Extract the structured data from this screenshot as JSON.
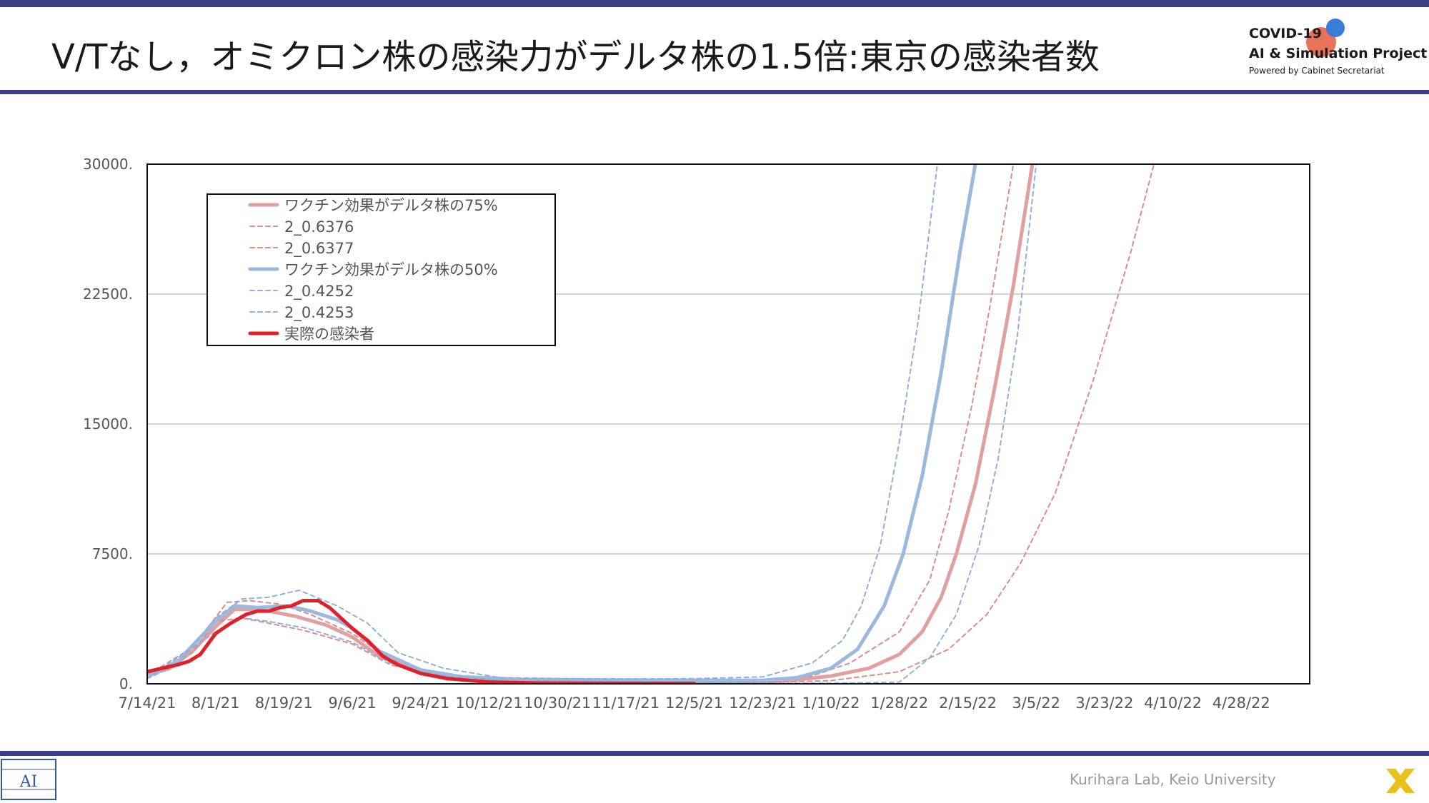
{
  "slide": {
    "title": "V/Tなし，オミクロン株の感染力がデルタ株の1.5倍:東京の感染者数",
    "brand_line1": "COVID-19",
    "brand_line2": "AI & Simulation Project",
    "brand_line3": "Powered by Cabinet Secretariat",
    "footer": "Kurihara Lab, Keio University",
    "logo_left_text": "AI",
    "bar_color": "#3b3f86"
  },
  "chart_data": {
    "type": "line",
    "title": "",
    "xlabel": "",
    "ylabel": "",
    "x_type": "date",
    "xlim": [
      "2021-07-14",
      "2022-05-16"
    ],
    "ylim": [
      0,
      30000
    ],
    "yticks": [
      0,
      7500,
      15000,
      22500,
      30000
    ],
    "ytick_labels": [
      "0.",
      "7500.",
      "15000.",
      "22500.",
      "30000."
    ],
    "xticks": [
      "2021-07-14",
      "2021-08-01",
      "2021-08-19",
      "2021-09-06",
      "2021-09-24",
      "2021-10-12",
      "2021-10-30",
      "2021-11-17",
      "2021-12-05",
      "2021-12-23",
      "2022-01-10",
      "2022-01-28",
      "2022-02-15",
      "2022-03-05",
      "2022-03-23",
      "2022-04-10",
      "2022-04-28"
    ],
    "xtick_labels": [
      "7/14/21",
      "8/1/21",
      "8/19/21",
      "9/6/21",
      "9/24/21",
      "10/12/21",
      "10/30/21",
      "11/17/21",
      "12/5/21",
      "12/23/21",
      "1/10/22",
      "1/28/22",
      "2/15/22",
      "3/5/22",
      "3/23/22",
      "4/10/22",
      "4/28/22"
    ],
    "grid": "horizontal",
    "legend_position": "top-left",
    "series": [
      {
        "name": "ワクチン効果がデルタ株の75%",
        "color": "#e0a0a0",
        "style": "solid-thick",
        "points": [
          [
            "2021-07-14",
            500
          ],
          [
            "2021-07-20",
            900
          ],
          [
            "2021-07-26",
            1900
          ],
          [
            "2021-08-01",
            3300
          ],
          [
            "2021-08-06",
            4300
          ],
          [
            "2021-08-10",
            4300
          ],
          [
            "2021-08-15",
            4200
          ],
          [
            "2021-08-22",
            3900
          ],
          [
            "2021-08-30",
            3400
          ],
          [
            "2021-09-06",
            2700
          ],
          [
            "2021-09-13",
            1600
          ],
          [
            "2021-09-24",
            700
          ],
          [
            "2021-10-05",
            350
          ],
          [
            "2021-10-15",
            220
          ],
          [
            "2021-11-01",
            200
          ],
          [
            "2021-11-17",
            160
          ],
          [
            "2021-12-05",
            120
          ],
          [
            "2021-12-23",
            120
          ],
          [
            "2022-01-01",
            230
          ],
          [
            "2022-01-10",
            450
          ],
          [
            "2022-01-20",
            900
          ],
          [
            "2022-01-28",
            1700
          ],
          [
            "2022-02-03",
            3000
          ],
          [
            "2022-02-08",
            5000
          ],
          [
            "2022-02-12",
            7500
          ],
          [
            "2022-02-17",
            11500
          ],
          [
            "2022-02-22",
            17000
          ],
          [
            "2022-02-27",
            23000
          ],
          [
            "2022-03-04",
            30000
          ]
        ]
      },
      {
        "name": "2_0.6376",
        "color": "#dd8c8c",
        "style": "dashed",
        "points": [
          [
            "2021-07-14",
            500
          ],
          [
            "2021-07-26",
            2100
          ],
          [
            "2021-08-04",
            4700
          ],
          [
            "2021-08-10",
            4800
          ],
          [
            "2021-08-18",
            4600
          ],
          [
            "2021-08-26",
            4000
          ],
          [
            "2021-09-06",
            2900
          ],
          [
            "2021-09-16",
            1400
          ],
          [
            "2021-09-30",
            500
          ],
          [
            "2021-10-15",
            250
          ],
          [
            "2021-11-01",
            210
          ],
          [
            "2021-12-05",
            150
          ],
          [
            "2021-12-23",
            200
          ],
          [
            "2022-01-05",
            450
          ],
          [
            "2022-01-15",
            1200
          ],
          [
            "2022-01-28",
            3000
          ],
          [
            "2022-02-05",
            6000
          ],
          [
            "2022-02-10",
            10000
          ],
          [
            "2022-02-16",
            16000
          ],
          [
            "2022-02-21",
            22000
          ],
          [
            "2022-02-27",
            30000
          ]
        ]
      },
      {
        "name": "2_0.6377",
        "color": "#dd8c8c",
        "style": "dashed",
        "points": [
          [
            "2021-07-14",
            500
          ],
          [
            "2021-07-26",
            1800
          ],
          [
            "2021-08-01",
            3600
          ],
          [
            "2021-08-08",
            3800
          ],
          [
            "2021-08-15",
            3500
          ],
          [
            "2021-08-24",
            3100
          ],
          [
            "2021-09-06",
            2300
          ],
          [
            "2021-09-16",
            1100
          ],
          [
            "2021-09-30",
            400
          ],
          [
            "2021-10-15",
            200
          ],
          [
            "2021-11-17",
            150
          ],
          [
            "2021-12-05",
            100
          ],
          [
            "2021-12-23",
            80
          ],
          [
            "2022-01-10",
            180
          ],
          [
            "2022-01-28",
            700
          ],
          [
            "2022-02-10",
            2000
          ],
          [
            "2022-02-20",
            4000
          ],
          [
            "2022-03-01",
            7000
          ],
          [
            "2022-03-10",
            11000
          ],
          [
            "2022-03-20",
            17500
          ],
          [
            "2022-03-30",
            25000
          ],
          [
            "2022-04-05",
            30000
          ]
        ]
      },
      {
        "name": "ワクチン効果がデルタ株の50%",
        "color": "#9bb8dd",
        "style": "solid-thick",
        "points": [
          [
            "2021-07-14",
            400
          ],
          [
            "2021-07-22",
            1300
          ],
          [
            "2021-08-01",
            3600
          ],
          [
            "2021-08-06",
            4500
          ],
          [
            "2021-08-12",
            4400
          ],
          [
            "2021-08-20",
            4500
          ],
          [
            "2021-08-26",
            4200
          ],
          [
            "2021-09-02",
            3700
          ],
          [
            "2021-09-06",
            3200
          ],
          [
            "2021-09-13",
            1900
          ],
          [
            "2021-09-24",
            800
          ],
          [
            "2021-10-05",
            400
          ],
          [
            "2021-10-20",
            250
          ],
          [
            "2021-11-10",
            220
          ],
          [
            "2021-12-05",
            200
          ],
          [
            "2021-12-23",
            200
          ],
          [
            "2022-01-01",
            350
          ],
          [
            "2022-01-10",
            900
          ],
          [
            "2022-01-17",
            2000
          ],
          [
            "2022-01-24",
            4500
          ],
          [
            "2022-01-29",
            7500
          ],
          [
            "2022-02-03",
            12000
          ],
          [
            "2022-02-08",
            18000
          ],
          [
            "2022-02-13",
            25000
          ],
          [
            "2022-02-17",
            30000
          ]
        ]
      },
      {
        "name": "2_0.4252",
        "color": "#8fb0dd",
        "style": "dashed",
        "points": [
          [
            "2021-07-14",
            300
          ],
          [
            "2021-07-22",
            1100
          ],
          [
            "2021-08-01",
            3800
          ],
          [
            "2021-08-08",
            4900
          ],
          [
            "2021-08-15",
            5000
          ],
          [
            "2021-08-23",
            5400
          ],
          [
            "2021-09-02",
            4500
          ],
          [
            "2021-09-10",
            3500
          ],
          [
            "2021-09-18",
            1800
          ],
          [
            "2021-09-30",
            900
          ],
          [
            "2021-10-15",
            350
          ],
          [
            "2021-11-01",
            300
          ],
          [
            "2021-11-20",
            280
          ],
          [
            "2021-12-05",
            300
          ],
          [
            "2021-12-23",
            400
          ],
          [
            "2022-01-05",
            1200
          ],
          [
            "2022-01-13",
            2500
          ],
          [
            "2022-01-18",
            4500
          ],
          [
            "2022-01-23",
            8000
          ],
          [
            "2022-01-28",
            14000
          ],
          [
            "2022-02-02",
            21000
          ],
          [
            "2022-02-07",
            30000
          ]
        ]
      },
      {
        "name": "2_0.4253",
        "color": "#8fb0dd",
        "style": "dashed",
        "points": [
          [
            "2021-07-14",
            300
          ],
          [
            "2021-08-01",
            3000
          ],
          [
            "2021-08-08",
            3800
          ],
          [
            "2021-08-15",
            3600
          ],
          [
            "2021-08-25",
            3200
          ],
          [
            "2021-09-06",
            2400
          ],
          [
            "2021-09-16",
            1200
          ],
          [
            "2021-09-30",
            450
          ],
          [
            "2021-10-15",
            200
          ],
          [
            "2021-11-17",
            150
          ],
          [
            "2021-12-05",
            80
          ],
          [
            "2021-12-23",
            30
          ],
          [
            "2022-01-10",
            30
          ],
          [
            "2022-01-28",
            100
          ],
          [
            "2022-02-05",
            1500
          ],
          [
            "2022-02-12",
            4000
          ],
          [
            "2022-02-18",
            8000
          ],
          [
            "2022-02-23",
            13000
          ],
          [
            "2022-02-28",
            20000
          ],
          [
            "2022-03-05",
            30000
          ]
        ]
      },
      {
        "name": "実際の感染者",
        "color": "#e0202a",
        "style": "solid-red",
        "points": [
          [
            "2021-07-14",
            700
          ],
          [
            "2021-07-18",
            900
          ],
          [
            "2021-07-22",
            1100
          ],
          [
            "2021-07-25",
            1300
          ],
          [
            "2021-07-28",
            1700
          ],
          [
            "2021-08-01",
            2900
          ],
          [
            "2021-08-05",
            3500
          ],
          [
            "2021-08-09",
            4000
          ],
          [
            "2021-08-12",
            4200
          ],
          [
            "2021-08-15",
            4200
          ],
          [
            "2021-08-18",
            4400
          ],
          [
            "2021-08-21",
            4500
          ],
          [
            "2021-08-24",
            4800
          ],
          [
            "2021-08-28",
            4800
          ],
          [
            "2021-08-31",
            4400
          ],
          [
            "2021-09-03",
            3800
          ],
          [
            "2021-09-06",
            3200
          ],
          [
            "2021-09-10",
            2500
          ],
          [
            "2021-09-14",
            1600
          ],
          [
            "2021-09-18",
            1100
          ],
          [
            "2021-09-24",
            600
          ],
          [
            "2021-10-01",
            300
          ],
          [
            "2021-10-12",
            100
          ],
          [
            "2021-10-25",
            40
          ],
          [
            "2021-11-10",
            25
          ],
          [
            "2021-12-05",
            15
          ]
        ]
      }
    ]
  }
}
